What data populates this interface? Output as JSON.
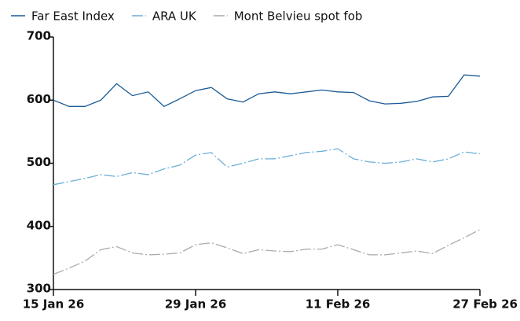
{
  "chart_data": {
    "type": "line",
    "categories": [
      "15 Jan 26",
      null,
      null,
      null,
      null,
      null,
      null,
      null,
      null,
      "29 Jan 26",
      null,
      null,
      null,
      null,
      null,
      null,
      null,
      null,
      "11 Feb 26",
      null,
      null,
      null,
      null,
      null,
      null,
      null,
      null,
      "27 Feb 26"
    ],
    "series": [
      {
        "name": "Far East Index",
        "color": "#1a5a96",
        "dash": "solid",
        "values": [
          600,
          590,
          590,
          600,
          626,
          607,
          613,
          590,
          602,
          615,
          620,
          602,
          597,
          610,
          613,
          610,
          613,
          616,
          613,
          612,
          599,
          594,
          595,
          598,
          605,
          606,
          640,
          638
        ]
      },
      {
        "name": "ARA UK",
        "color": "#6baed6",
        "dash": "dashdot",
        "values": [
          466,
          471,
          476,
          482,
          479,
          485,
          482,
          491,
          497,
          513,
          517,
          494,
          500,
          507,
          507,
          512,
          517,
          519,
          523,
          507,
          502,
          500,
          502,
          507,
          502,
          507,
          518,
          515
        ]
      },
      {
        "name": "Mont Belvieu spot fob",
        "color": "#aaaaaa",
        "dash": "dashdot",
        "values": [
          324,
          334,
          345,
          363,
          368,
          358,
          355,
          356,
          358,
          371,
          374,
          366,
          357,
          363,
          361,
          360,
          364,
          364,
          371,
          363,
          355,
          355,
          358,
          361,
          357,
          370,
          382,
          395
        ]
      }
    ],
    "ylim": [
      300,
      700
    ],
    "yticks": [
      300,
      400,
      500,
      600,
      700
    ],
    "legend": "top"
  }
}
